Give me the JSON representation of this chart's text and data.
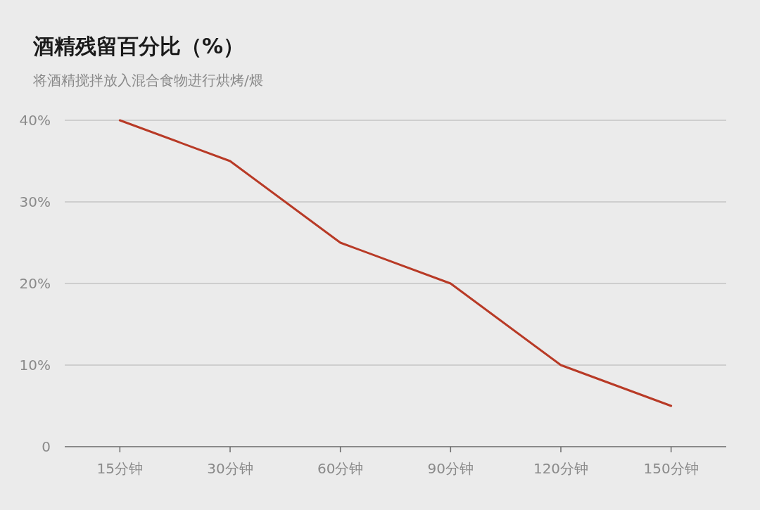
{
  "chart_data": {
    "type": "line",
    "title": "酒精残留百分比（%）",
    "subtitle": "将酒精搅拌放入混合食物进行烘烤/煨",
    "categories": [
      "15分钟",
      "30分钟",
      "60分钟",
      "90分钟",
      "120分钟",
      "150分钟"
    ],
    "series": [
      {
        "color": "#b83a26",
        "values": [
          40,
          35,
          25,
          20,
          10,
          5
        ]
      }
    ],
    "ylim": [
      0,
      40
    ],
    "yticks": [
      {
        "value": 0,
        "label": "0"
      },
      {
        "value": 10,
        "label": "10%"
      },
      {
        "value": 20,
        "label": "20%"
      },
      {
        "value": 30,
        "label": "30%"
      },
      {
        "value": 40,
        "label": "40%"
      }
    ],
    "grid": "y",
    "marker": "none",
    "line_style": "solid"
  }
}
